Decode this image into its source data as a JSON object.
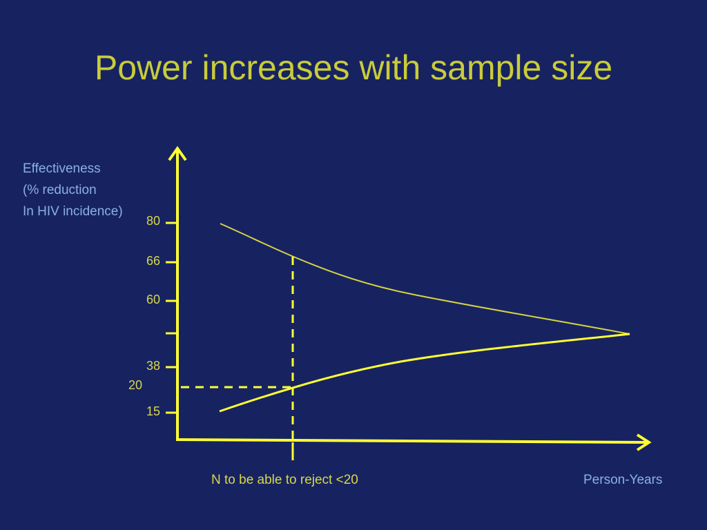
{
  "title": "Power increases with sample size",
  "y_axis": {
    "label_lines": [
      "Effectiveness",
      "(% reduction",
      "In HIV incidence)"
    ],
    "ticks": [
      "80",
      "66",
      "60",
      "38",
      "20",
      "15"
    ]
  },
  "x_axis": {
    "name": "Person-Years",
    "marker_label": "N to be able to reject <20"
  },
  "colors": {
    "background": "#172360",
    "title": "#c9cc3a",
    "axes": "#ffff33",
    "curves": "#d6d443",
    "label_blue": "#8ab0e8"
  }
}
